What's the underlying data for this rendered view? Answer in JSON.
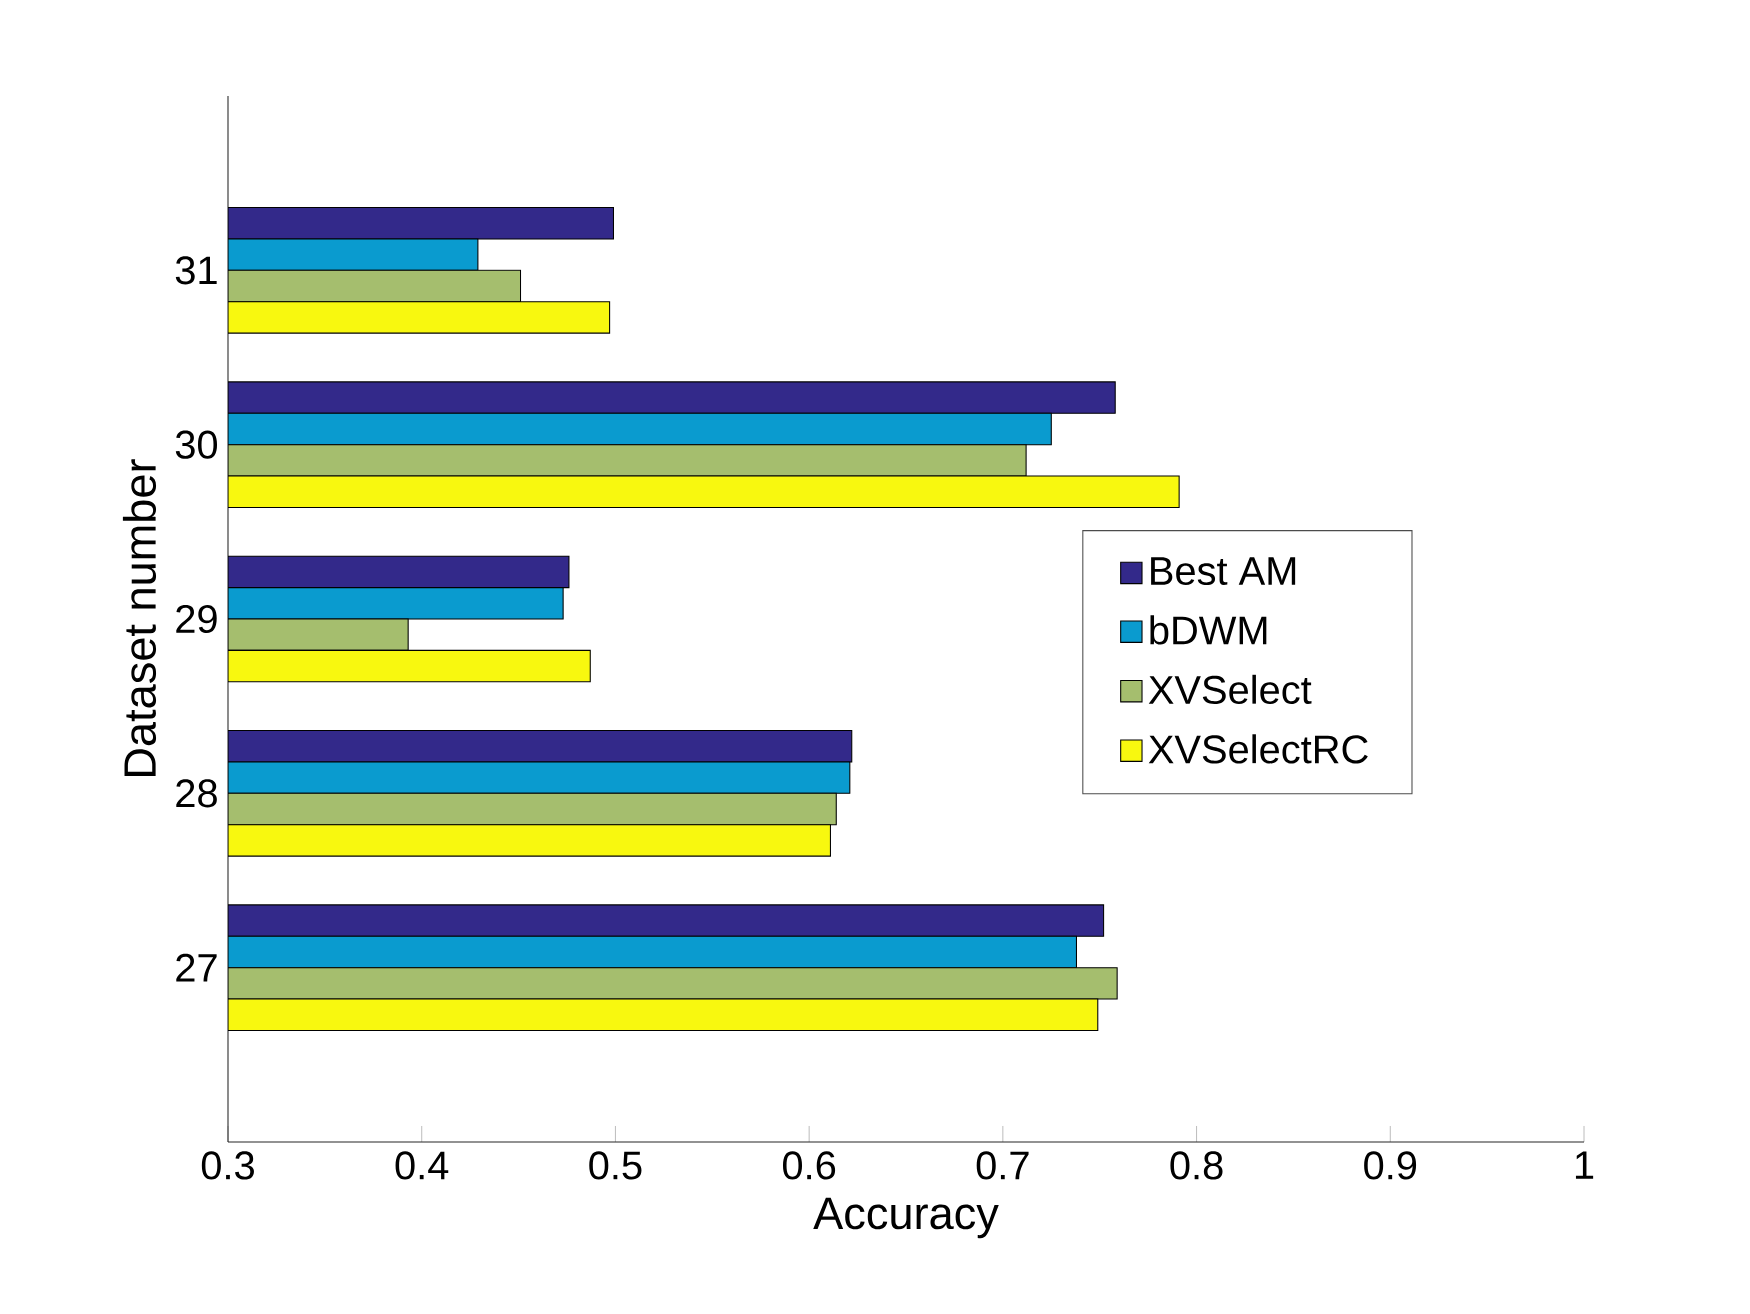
{
  "chart_data": {
    "type": "bar",
    "orientation": "horizontal",
    "xlabel": "Accuracy",
    "ylabel": "Dataset number",
    "categories": [
      "31",
      "30",
      "29",
      "28",
      "27"
    ],
    "series": [
      {
        "name": "Best AM",
        "color": "#33298a",
        "values": [
          0.499,
          0.758,
          0.476,
          0.622,
          0.752
        ]
      },
      {
        "name": "bDWM",
        "color": "#0a9bcf",
        "values": [
          0.429,
          0.725,
          0.473,
          0.621,
          0.738
        ]
      },
      {
        "name": "XVSelect",
        "color": "#a5be6e",
        "values": [
          0.451,
          0.712,
          0.393,
          0.614,
          0.759
        ]
      },
      {
        "name": "XVSelectRC",
        "color": "#f8f80f",
        "values": [
          0.497,
          0.791,
          0.487,
          0.611,
          0.749
        ]
      }
    ],
    "xlim": [
      0.3,
      1
    ],
    "xticks": [
      0.3,
      0.4,
      0.5,
      0.6,
      0.7,
      0.8,
      0.9,
      1
    ],
    "grid": false,
    "legend": "right"
  }
}
